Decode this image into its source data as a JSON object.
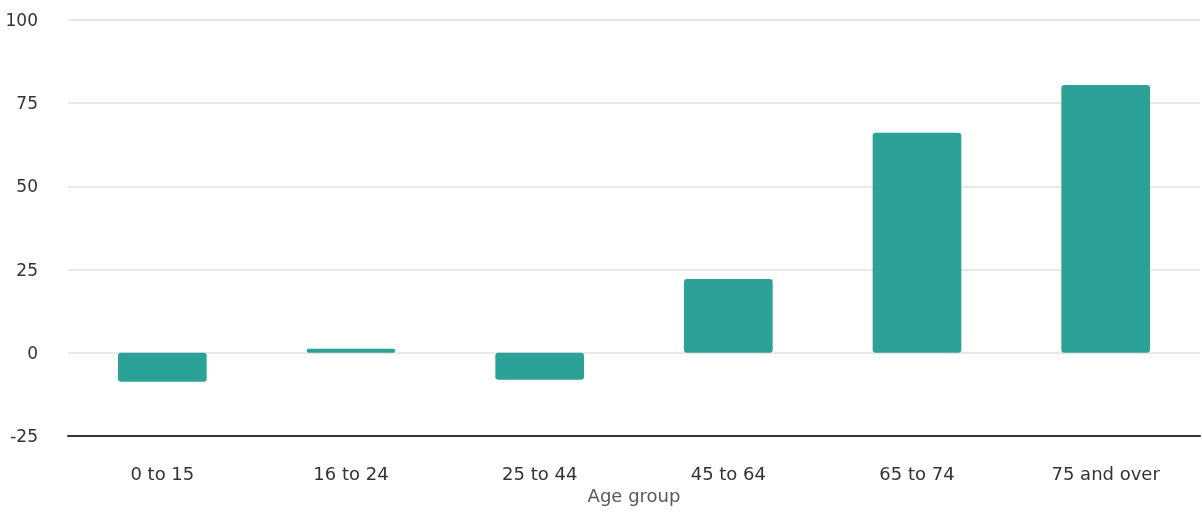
{
  "chart_data": {
    "type": "bar",
    "xlabel": "Age group",
    "categories": [
      "0 to 15",
      "16 to 24",
      "25 to 44",
      "45 to 64",
      "65 to 74",
      "75 and over"
    ],
    "values": [
      -8.7,
      1.2,
      -8.1,
      22.2,
      66.1,
      80.5
    ],
    "color": "#2ca197",
    "ylim": [
      -25,
      100
    ],
    "yticks": [
      -25,
      0,
      25,
      50,
      75,
      100
    ],
    "grid": "y"
  }
}
